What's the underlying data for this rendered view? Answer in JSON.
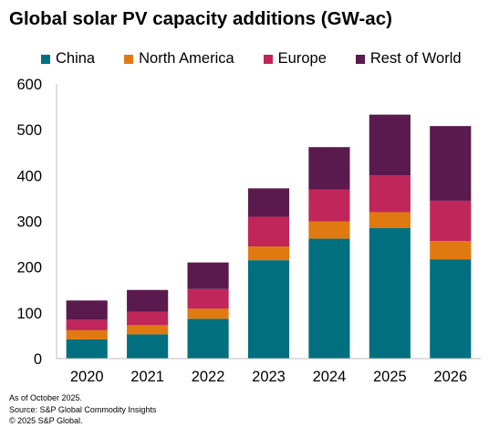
{
  "chart_data": {
    "type": "bar",
    "stacked": true,
    "title": "Global solar PV capacity additions (GW-ac)",
    "categories": [
      "2020",
      "2021",
      "2022",
      "2023",
      "2024",
      "2025",
      "2026"
    ],
    "series": [
      {
        "name": "China",
        "color": "#007080",
        "values": [
          42,
          53,
          87,
          215,
          262,
          285,
          217
        ]
      },
      {
        "name": "North America",
        "color": "#e07a10",
        "values": [
          20,
          20,
          22,
          30,
          38,
          35,
          40
        ]
      },
      {
        "name": "Europe",
        "color": "#c0265a",
        "values": [
          23,
          29,
          43,
          65,
          69,
          80,
          88
        ]
      },
      {
        "name": "Rest of World",
        "color": "#5a1a4d",
        "values": [
          42,
          48,
          58,
          62,
          93,
          133,
          163
        ]
      }
    ],
    "ylim": [
      0,
      600
    ],
    "yticks": [
      0,
      100,
      200,
      300,
      400,
      500,
      600
    ],
    "grid": false,
    "legend_position": "top"
  },
  "notes": {
    "line1": "As of October 2025.",
    "line2": "Source: S&P Global Commodity Insights",
    "line3": "© 2025 S&P Global."
  }
}
